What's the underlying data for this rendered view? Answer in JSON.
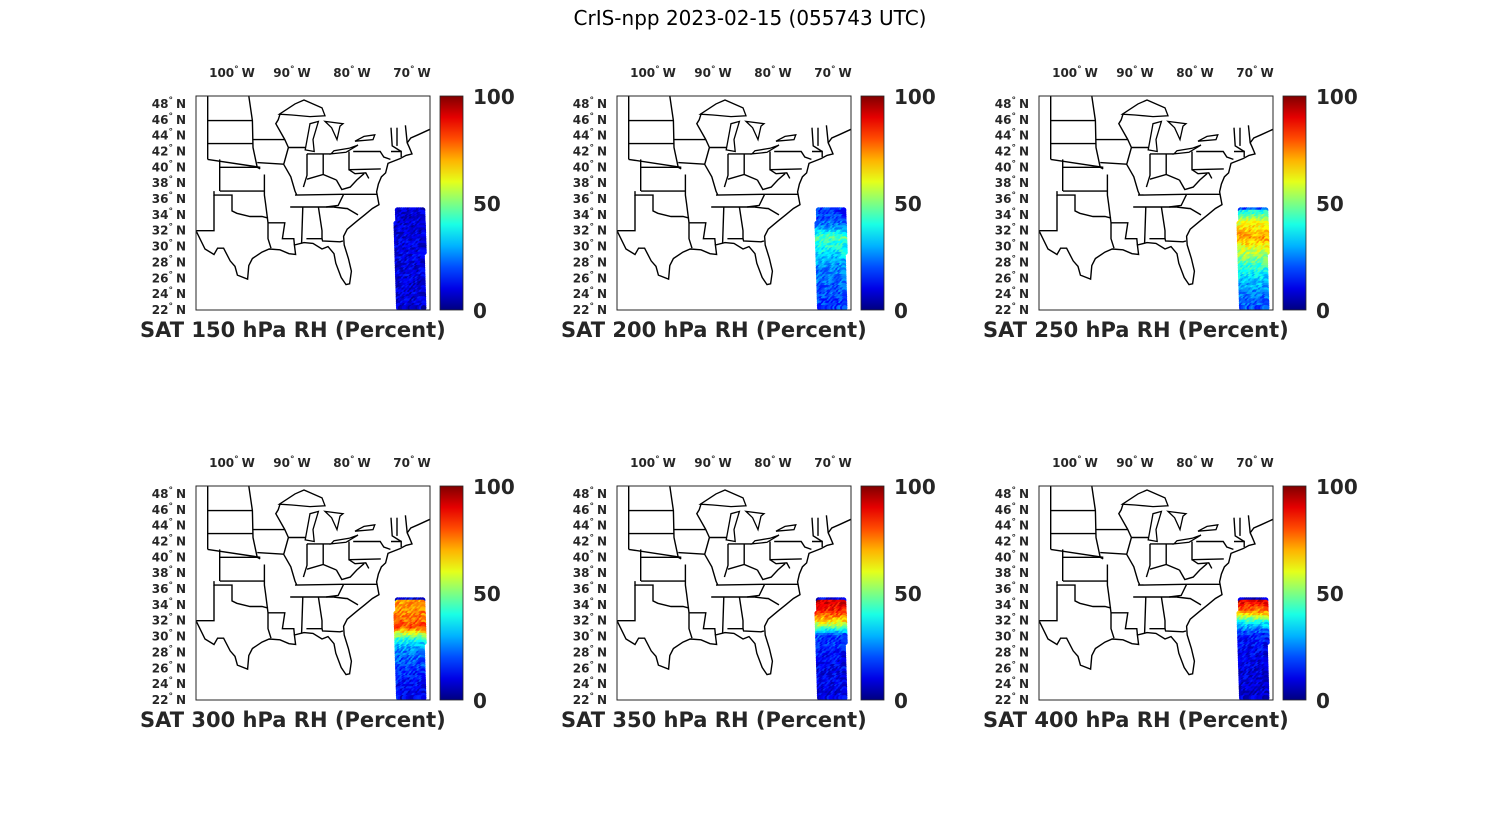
{
  "figure": {
    "title": "CrIS-npp 2023-02-15 (055743 UTC)"
  },
  "map": {
    "lon_ticks": [
      {
        "value": -100,
        "label": "100",
        "hemi": "W"
      },
      {
        "value": -90,
        "label": "90",
        "hemi": "W"
      },
      {
        "value": -80,
        "label": "80",
        "hemi": "W"
      },
      {
        "value": -70,
        "label": "70",
        "hemi": "W"
      }
    ],
    "lat_ticks": [
      {
        "value": 48,
        "label": "48",
        "hemi": "N"
      },
      {
        "value": 46,
        "label": "46",
        "hemi": "N"
      },
      {
        "value": 44,
        "label": "44",
        "hemi": "N"
      },
      {
        "value": 42,
        "label": "42",
        "hemi": "N"
      },
      {
        "value": 40,
        "label": "40",
        "hemi": "N"
      },
      {
        "value": 38,
        "label": "38",
        "hemi": "N"
      },
      {
        "value": 36,
        "label": "36",
        "hemi": "N"
      },
      {
        "value": 34,
        "label": "34",
        "hemi": "N"
      },
      {
        "value": 32,
        "label": "32",
        "hemi": "N"
      },
      {
        "value": 30,
        "label": "30",
        "hemi": "N"
      },
      {
        "value": 28,
        "label": "28",
        "hemi": "N"
      },
      {
        "value": 26,
        "label": "26",
        "hemi": "N"
      },
      {
        "value": 24,
        "label": "24",
        "hemi": "N"
      },
      {
        "value": 22,
        "label": "22",
        "hemi": "N"
      }
    ],
    "extent": {
      "lon_min": -106,
      "lon_max": -67,
      "lat_min": 22,
      "lat_max": 49
    },
    "colormap": "jet",
    "colorbar_ticks": [
      "100",
      "50",
      "0"
    ],
    "colorbar_range": [
      0,
      100
    ],
    "state_line_color": "#000000"
  },
  "panels": [
    {
      "title": "SAT 150 hPa RH (Percent)",
      "rh_profile": [
        {
          "lat": 34.5,
          "rh": 8
        },
        {
          "lat": 28,
          "rh": 10
        },
        {
          "lat": 22,
          "rh": 8
        }
      ]
    },
    {
      "title": "SAT 200 hPa RH (Percent)",
      "rh_profile": [
        {
          "lat": 34.5,
          "rh": 15
        },
        {
          "lat": 32.5,
          "rh": 25
        },
        {
          "lat": 31,
          "rh": 45
        },
        {
          "lat": 29,
          "rh": 35
        },
        {
          "lat": 27,
          "rh": 25
        },
        {
          "lat": 22,
          "rh": 18
        }
      ]
    },
    {
      "title": "SAT 250 hPa RH (Percent)",
      "rh_profile": [
        {
          "lat": 34.5,
          "rh": 35
        },
        {
          "lat": 33,
          "rh": 60
        },
        {
          "lat": 31,
          "rh": 72
        },
        {
          "lat": 29,
          "rh": 55
        },
        {
          "lat": 27,
          "rh": 40
        },
        {
          "lat": 24,
          "rh": 25
        },
        {
          "lat": 22,
          "rh": 20
        }
      ]
    },
    {
      "title": "SAT 300 hPa RH (Percent)",
      "rh_profile": [
        {
          "lat": 34.5,
          "rh": 72
        },
        {
          "lat": 32.5,
          "rh": 75
        },
        {
          "lat": 31,
          "rh": 80
        },
        {
          "lat": 29.5,
          "rh": 40
        },
        {
          "lat": 28,
          "rh": 25
        },
        {
          "lat": 25,
          "rh": 15
        },
        {
          "lat": 22,
          "rh": 10
        }
      ]
    },
    {
      "title": "SAT 350 hPa RH (Percent)",
      "rh_profile": [
        {
          "lat": 34.5,
          "rh": 92
        },
        {
          "lat": 33,
          "rh": 85
        },
        {
          "lat": 31.5,
          "rh": 60
        },
        {
          "lat": 30,
          "rh": 20
        },
        {
          "lat": 27,
          "rh": 12
        },
        {
          "lat": 22,
          "rh": 10
        }
      ]
    },
    {
      "title": "SAT 400 hPa RH (Percent)",
      "rh_profile": [
        {
          "lat": 34.5,
          "rh": 92
        },
        {
          "lat": 33,
          "rh": 75
        },
        {
          "lat": 31.5,
          "rh": 35
        },
        {
          "lat": 30,
          "rh": 15
        },
        {
          "lat": 27,
          "rh": 10
        },
        {
          "lat": 22,
          "rh": 8
        }
      ]
    }
  ]
}
